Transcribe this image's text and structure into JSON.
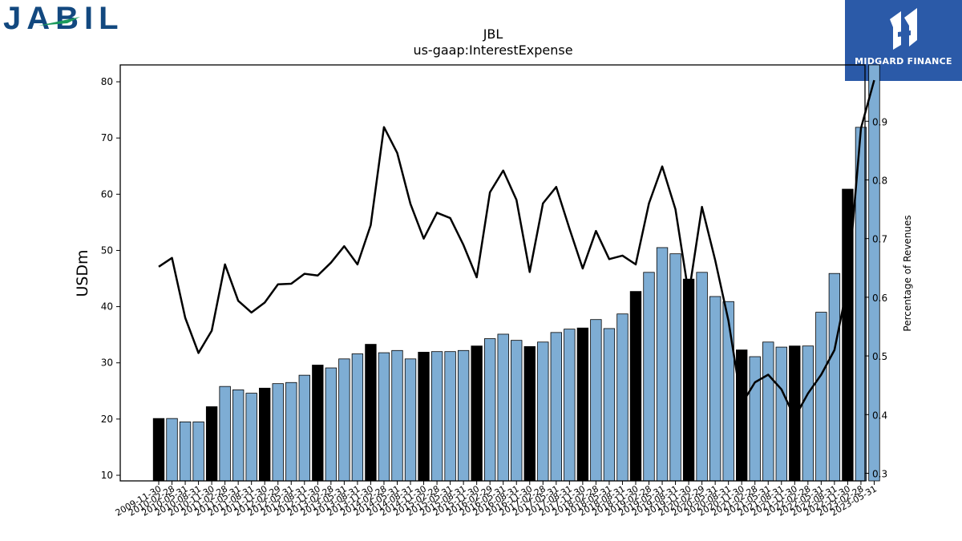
{
  "logos": {
    "left_text": "JABIL",
    "right_text": "MIDGARD FINANCE",
    "left_color": "#12487f",
    "left_accent": "#1a9a5c",
    "right_bg": "#2b5aa8"
  },
  "chart_data": {
    "type": "bar",
    "title": "JBL",
    "subtitle": "us-gaap:InterestExpense",
    "ylabel": "USDm",
    "y2label": "Percentage of Revenues",
    "ylim": [
      9,
      83
    ],
    "y2lim": [
      0.287,
      0.996
    ],
    "yticks": [
      10,
      20,
      30,
      40,
      50,
      60,
      70,
      80
    ],
    "y2ticks": [
      0.3,
      0.4,
      0.5,
      0.6,
      0.7,
      0.8,
      0.9
    ],
    "colors": {
      "quarter": "#7eadd4",
      "fiscal_year_end": "#000000",
      "line": "#000000"
    },
    "categories": [
      "2009-11-30",
      "2010-02-28",
      "2010-05-31",
      "2010-08-31",
      "2010-11-30",
      "2011-02-28",
      "2011-05-31",
      "2011-08-31",
      "2011-11-30",
      "2012-02-29",
      "2012-05-31",
      "2012-08-31",
      "2012-11-30",
      "2013-02-28",
      "2013-05-31",
      "2013-08-31",
      "2013-11-30",
      "2014-02-28",
      "2014-05-31",
      "2014-08-31",
      "2014-11-30",
      "2015-02-28",
      "2015-05-31",
      "2015-08-31",
      "2015-11-30",
      "2016-02-29",
      "2016-05-31",
      "2016-08-31",
      "2016-11-30",
      "2017-02-28",
      "2017-05-31",
      "2017-08-31",
      "2017-11-30",
      "2018-02-28",
      "2018-05-31",
      "2018-08-31",
      "2018-11-30",
      "2019-02-28",
      "2019-05-31",
      "2019-08-31",
      "2019-11-30",
      "2020-02-29",
      "2020-05-31",
      "2020-08-31",
      "2020-11-30",
      "2021-02-28",
      "2021-05-31",
      "2021-08-31",
      "2021-11-30",
      "2022-02-28",
      "2022-05-31",
      "2022-08-31",
      "2022-11-30",
      "2023-02-28",
      "2023-05-31"
    ],
    "series": [
      {
        "kind": "bar",
        "values": [
          20.1,
          20.1,
          19.5,
          19.5,
          22.2,
          25.8,
          25.2,
          24.6,
          25.5,
          26.3,
          26.5,
          27.8,
          29.6,
          29.1,
          30.7,
          31.6,
          33.3,
          31.8,
          32.2,
          30.7,
          31.9,
          32.0,
          32.0,
          32.2,
          33.0,
          34.3,
          35.1,
          34.0,
          32.9,
          33.7,
          35.4,
          36.0,
          36.2,
          37.7,
          36.1,
          38.7,
          42.7,
          46.1,
          50.5,
          49.4,
          44.9,
          46.1,
          41.8,
          40.9,
          32.3,
          31.1,
          33.7,
          32.8,
          33.0,
          33.0,
          39.0,
          45.9,
          60.9,
          71.9,
          83.2
        ],
        "highlight": [
          true,
          false,
          false,
          false,
          true,
          false,
          false,
          false,
          true,
          false,
          false,
          false,
          true,
          false,
          false,
          false,
          true,
          false,
          false,
          false,
          true,
          false,
          false,
          false,
          true,
          false,
          false,
          false,
          true,
          false,
          false,
          false,
          true,
          false,
          false,
          false,
          true,
          false,
          false,
          false,
          true,
          false,
          false,
          false,
          true,
          false,
          false,
          false,
          true,
          false,
          false,
          false,
          true,
          false,
          false
        ]
      },
      {
        "kind": "line",
        "axis": "right",
        "values": [
          0.652,
          0.667,
          0.565,
          0.505,
          0.543,
          0.656,
          0.594,
          0.574,
          0.591,
          0.622,
          0.623,
          0.64,
          0.637,
          0.659,
          0.687,
          0.656,
          0.723,
          0.89,
          0.846,
          0.759,
          0.7,
          0.744,
          0.735,
          0.689,
          0.634,
          0.779,
          0.816,
          0.766,
          0.643,
          0.76,
          0.788,
          0.717,
          0.649,
          0.713,
          0.665,
          0.671,
          0.656,
          0.76,
          0.823,
          0.75,
          0.605,
          0.754,
          0.663,
          0.56,
          0.418,
          0.455,
          0.468,
          0.443,
          0.395,
          0.436,
          0.468,
          0.51,
          0.622,
          0.888,
          0.97
        ]
      }
    ]
  }
}
